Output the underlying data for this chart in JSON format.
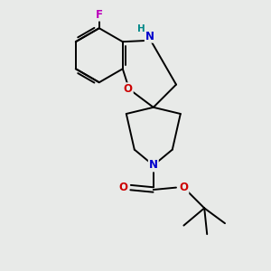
{
  "background_color": "#e8eae8",
  "fig_width": 3.0,
  "fig_height": 3.0,
  "dpi": 100,
  "atom_colors": {
    "C": "#000000",
    "N": "#0000cc",
    "O": "#cc0000",
    "F": "#bb00bb",
    "H": "#008888"
  },
  "bond_color": "#000000",
  "bond_width": 1.4,
  "font_size_atom": 8.5,
  "xlim": [
    -1.6,
    1.9
  ],
  "ylim": [
    -2.5,
    2.5
  ]
}
